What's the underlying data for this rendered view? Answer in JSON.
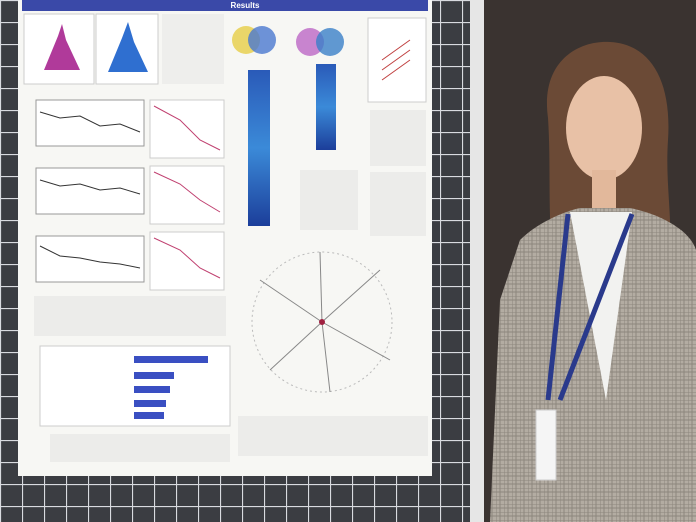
{
  "poster": {
    "header": "Results"
  }
}
